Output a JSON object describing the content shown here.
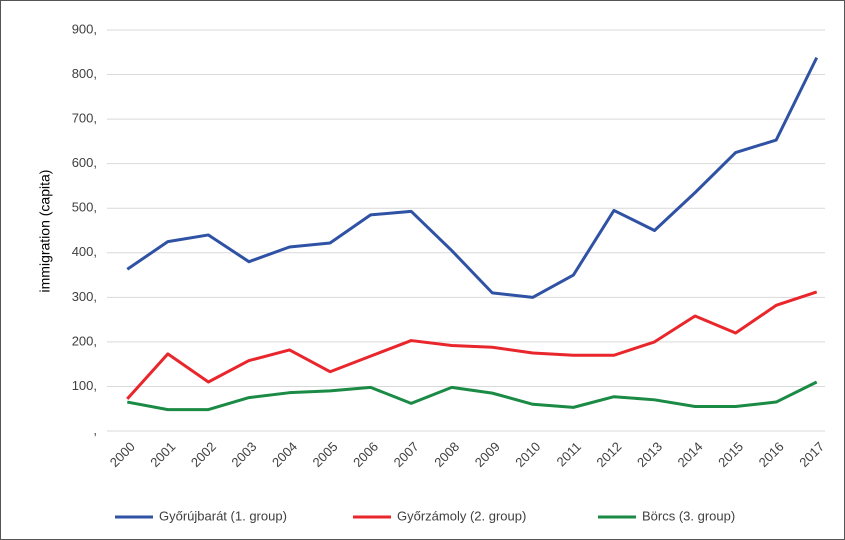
{
  "chart_data": {
    "type": "line",
    "y_label": "immigration (capita)",
    "categories": [
      "2000",
      "2001",
      "2002",
      "2003",
      "2004",
      "2005",
      "2006",
      "2007",
      "2008",
      "2009",
      "2010",
      "2011",
      "2012",
      "2013",
      "2014",
      "2015",
      "2016",
      "2017"
    ],
    "series": [
      {
        "name": "Győrújbarát (1. group)",
        "color": "#2f52a4",
        "values": [
          363,
          425,
          440,
          380,
          413,
          422,
          485,
          493,
          405,
          310,
          300,
          350,
          495,
          450,
          535,
          625,
          653,
          838
        ]
      },
      {
        "name": "Győrzámoly (2. group)",
        "color": "#e8262b",
        "values": [
          72,
          173,
          110,
          158,
          182,
          133,
          168,
          203,
          192,
          188,
          175,
          170,
          170,
          200,
          258,
          220,
          282,
          312
        ]
      },
      {
        "name": "Börcs (3. group)",
        "color": "#1a8a44",
        "values": [
          65,
          48,
          48,
          75,
          86,
          90,
          98,
          62,
          98,
          85,
          60,
          53,
          77,
          70,
          55,
          55,
          65,
          110
        ]
      }
    ],
    "ylim": [
      0,
      900
    ],
    "yticks": [
      {
        "value": 0,
        "label": ","
      },
      {
        "value": 100,
        "label": "100,"
      },
      {
        "value": 200,
        "label": "200,"
      },
      {
        "value": 300,
        "label": "300,"
      },
      {
        "value": 400,
        "label": "400,"
      },
      {
        "value": 500,
        "label": "500,"
      },
      {
        "value": 600,
        "label": "600,"
      },
      {
        "value": 700,
        "label": "700,"
      },
      {
        "value": 800,
        "label": "800,"
      },
      {
        "value": 900,
        "label": "900,"
      }
    ],
    "grid": true
  }
}
